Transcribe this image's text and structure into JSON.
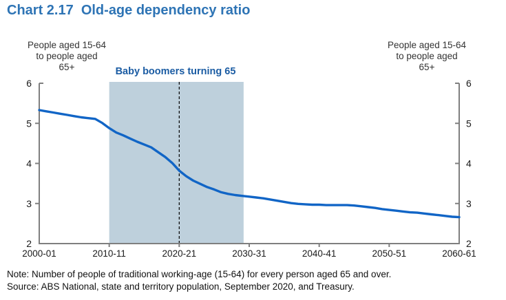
{
  "title": "Chart 2.17  Old-age dependency ratio",
  "axis_annotation": {
    "line1": "People aged 15-64",
    "line2": "to people aged",
    "line3": "65+"
  },
  "band_label": "Baby boomers turning 65",
  "note": "Note: Number of people of traditional working-age (15-64) for every person aged 65 and over.",
  "source": "Source: ABS National, state and territory population, September 2020, and Treasury.",
  "colors": {
    "title_blue": "#2E74B5",
    "line_blue": "#1165C6",
    "band_fill": "#BED0DC",
    "band_label_blue": "#1B5CA3",
    "axis_gray": "#7F7F7F",
    "dashed_line": "#000000"
  },
  "chart_data": {
    "type": "line",
    "title": "Chart 2.17  Old-age dependency ratio",
    "ylabel": "People aged 15-64 to people aged 65+",
    "xlabel": "",
    "ylim": [
      2,
      6
    ],
    "y_ticks": [
      2,
      3,
      4,
      5,
      6
    ],
    "x_tick_labels": [
      "2000-01",
      "2010-11",
      "2020-21",
      "2030-31",
      "2040-41",
      "2050-51",
      "2060-61"
    ],
    "x_range_years": [
      "2000-01",
      "2060-61"
    ],
    "grid": false,
    "legend_position": "none",
    "series": [
      {
        "name": "Old-age dependency ratio",
        "x_start_index": 0,
        "values": [
          5.33,
          5.3,
          5.27,
          5.24,
          5.21,
          5.18,
          5.15,
          5.13,
          5.11,
          5.01,
          4.88,
          4.77,
          4.7,
          4.62,
          4.54,
          4.47,
          4.4,
          4.28,
          4.16,
          4.01,
          3.82,
          3.68,
          3.57,
          3.49,
          3.41,
          3.35,
          3.28,
          3.24,
          3.21,
          3.19,
          3.17,
          3.15,
          3.13,
          3.1,
          3.07,
          3.04,
          3.01,
          2.99,
          2.98,
          2.97,
          2.97,
          2.96,
          2.96,
          2.96,
          2.96,
          2.95,
          2.93,
          2.91,
          2.89,
          2.86,
          2.84,
          2.82,
          2.8,
          2.78,
          2.77,
          2.75,
          2.73,
          2.71,
          2.69,
          2.67,
          2.66
        ]
      }
    ],
    "shaded_band": {
      "label": "Baby boomers turning 65",
      "from_year_index": 10,
      "to_year_index": 29.2
    },
    "dashed_line_year_index": 20,
    "annotations": [
      {
        "text": "People aged 15-64 to people aged 65+",
        "position": "top-left"
      },
      {
        "text": "People aged 15-64 to people aged 65+",
        "position": "top-right"
      }
    ]
  }
}
